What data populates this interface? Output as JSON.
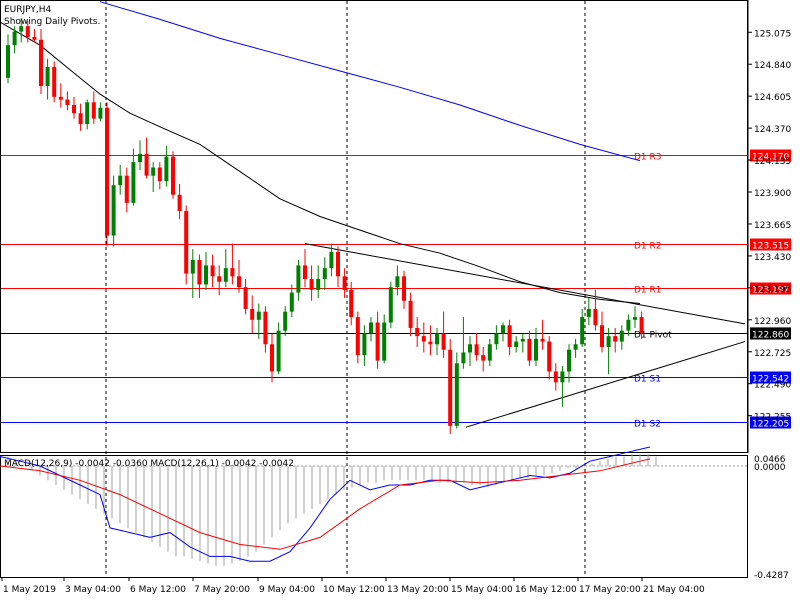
{
  "header": {
    "symbol_tf": "EURJPY,H4",
    "subtitle": "Showing Daily Pivots."
  },
  "price_axis": {
    "ticks": [
      "125.075",
      "124.840",
      "124.605",
      "124.370",
      "124.135",
      "123.900",
      "123.665",
      "123.430",
      "123.195",
      "122.960",
      "122.725",
      "122.490",
      "122.255"
    ],
    "current_price": "122.860"
  },
  "pivots": [
    {
      "label": "D1 R3",
      "price": "124.170",
      "color": "#ff0000"
    },
    {
      "label": "D1 R2",
      "price": "123.515",
      "color": "#ff0000"
    },
    {
      "label": "D1 R1",
      "price": "123.197",
      "color": "#ff0000"
    },
    {
      "label": "D1 Pivot",
      "price": "122.860",
      "color": "#000000"
    },
    {
      "label": "D1 S1",
      "price": "122.542",
      "color": "#0000ff"
    },
    {
      "label": "D1 S2",
      "price": "122.205",
      "color": "#0000ff"
    }
  ],
  "macd": {
    "caption": "MACD(12,26,9) -0.0042 -0.0360 MACD(12,26,1) -0.0042 -0.0042",
    "ticks": [
      "0.0466",
      "0.0000",
      "-0.4287"
    ]
  },
  "time_axis": [
    "1 May 2019",
    "3 May 04:00",
    "6 May 12:00",
    "7 May 20:00",
    "9 May 04:00",
    "10 May 12:00",
    "13 May 20:00",
    "15 May 04:00",
    "16 May 12:00",
    "17 May 20:00",
    "21 May 04:00"
  ],
  "colors": {
    "bull": "#008000",
    "bear": "#ff0000",
    "ma_fast": "#000000",
    "ma_slow": "#0000ff",
    "macd_line": "#0000ff",
    "signal_line": "#ff0000",
    "histogram": "#a0a0a0",
    "grid": "#000000"
  },
  "chart_data": {
    "type": "candlestick",
    "symbol": "EURJPY",
    "timeframe": "H4",
    "ylim": [
      122.12,
      125.18
    ],
    "candles": [
      {
        "o": 124.74,
        "h": 125.06,
        "l": 124.7,
        "c": 124.98
      },
      {
        "o": 124.98,
        "h": 125.12,
        "l": 124.92,
        "c": 125.08
      },
      {
        "o": 125.08,
        "h": 125.18,
        "l": 125.0,
        "c": 125.12
      },
      {
        "o": 125.12,
        "h": 125.16,
        "l": 125.0,
        "c": 125.04
      },
      {
        "o": 125.04,
        "h": 125.1,
        "l": 125.0,
        "c": 125.02
      },
      {
        "o": 125.02,
        "h": 125.1,
        "l": 124.62,
        "c": 124.68
      },
      {
        "o": 124.68,
        "h": 124.88,
        "l": 124.58,
        "c": 124.82
      },
      {
        "o": 124.82,
        "h": 124.86,
        "l": 124.56,
        "c": 124.6
      },
      {
        "o": 124.6,
        "h": 124.7,
        "l": 124.52,
        "c": 124.58
      },
      {
        "o": 124.58,
        "h": 124.64,
        "l": 124.5,
        "c": 124.54
      },
      {
        "o": 124.54,
        "h": 124.6,
        "l": 124.44,
        "c": 124.48
      },
      {
        "o": 124.48,
        "h": 124.55,
        "l": 124.35,
        "c": 124.4
      },
      {
        "o": 124.4,
        "h": 124.58,
        "l": 124.36,
        "c": 124.56
      },
      {
        "o": 124.56,
        "h": 124.64,
        "l": 124.4,
        "c": 124.44
      },
      {
        "o": 124.44,
        "h": 124.56,
        "l": 124.42,
        "c": 124.52
      },
      {
        "o": 124.52,
        "h": 124.56,
        "l": 123.5,
        "c": 123.58
      },
      {
        "o": 123.58,
        "h": 124.02,
        "l": 123.5,
        "c": 123.95
      },
      {
        "o": 123.95,
        "h": 124.1,
        "l": 123.88,
        "c": 124.02
      },
      {
        "o": 124.02,
        "h": 124.08,
        "l": 123.75,
        "c": 123.82
      },
      {
        "o": 123.82,
        "h": 124.22,
        "l": 123.8,
        "c": 124.12
      },
      {
        "o": 124.12,
        "h": 124.28,
        "l": 124.06,
        "c": 124.18
      },
      {
        "o": 124.18,
        "h": 124.3,
        "l": 124.0,
        "c": 124.02
      },
      {
        "o": 124.02,
        "h": 124.12,
        "l": 123.9,
        "c": 124.08
      },
      {
        "o": 124.08,
        "h": 124.12,
        "l": 123.92,
        "c": 123.98
      },
      {
        "o": 123.98,
        "h": 124.24,
        "l": 123.94,
        "c": 124.16
      },
      {
        "o": 124.16,
        "h": 124.2,
        "l": 123.85,
        "c": 123.88
      },
      {
        "o": 123.88,
        "h": 123.96,
        "l": 123.7,
        "c": 123.76
      },
      {
        "o": 123.76,
        "h": 123.8,
        "l": 123.22,
        "c": 123.3
      },
      {
        "o": 123.3,
        "h": 123.48,
        "l": 123.12,
        "c": 123.4
      },
      {
        "o": 123.4,
        "h": 123.44,
        "l": 123.12,
        "c": 123.22
      },
      {
        "o": 123.22,
        "h": 123.46,
        "l": 123.18,
        "c": 123.36
      },
      {
        "o": 123.36,
        "h": 123.44,
        "l": 123.2,
        "c": 123.28
      },
      {
        "o": 123.28,
        "h": 123.36,
        "l": 123.14,
        "c": 123.24
      },
      {
        "o": 123.24,
        "h": 123.48,
        "l": 123.2,
        "c": 123.34
      },
      {
        "o": 123.34,
        "h": 123.52,
        "l": 123.22,
        "c": 123.28
      },
      {
        "o": 123.28,
        "h": 123.4,
        "l": 123.16,
        "c": 123.2
      },
      {
        "o": 123.2,
        "h": 123.26,
        "l": 123.0,
        "c": 123.04
      },
      {
        "o": 123.04,
        "h": 123.14,
        "l": 122.86,
        "c": 122.96
      },
      {
        "o": 122.96,
        "h": 123.08,
        "l": 122.82,
        "c": 123.02
      },
      {
        "o": 123.02,
        "h": 123.06,
        "l": 122.72,
        "c": 122.78
      },
      {
        "o": 122.78,
        "h": 122.86,
        "l": 122.5,
        "c": 122.58
      },
      {
        "o": 122.58,
        "h": 122.94,
        "l": 122.56,
        "c": 122.88
      },
      {
        "o": 122.88,
        "h": 123.06,
        "l": 122.84,
        "c": 123.02
      },
      {
        "o": 123.02,
        "h": 123.22,
        "l": 122.98,
        "c": 123.16
      },
      {
        "o": 123.16,
        "h": 123.4,
        "l": 123.1,
        "c": 123.36
      },
      {
        "o": 123.36,
        "h": 123.48,
        "l": 123.2,
        "c": 123.26
      },
      {
        "o": 123.26,
        "h": 123.36,
        "l": 123.1,
        "c": 123.18
      },
      {
        "o": 123.18,
        "h": 123.36,
        "l": 123.12,
        "c": 123.26
      },
      {
        "o": 123.26,
        "h": 123.42,
        "l": 123.18,
        "c": 123.34
      },
      {
        "o": 123.34,
        "h": 123.52,
        "l": 123.28,
        "c": 123.46
      },
      {
        "o": 123.46,
        "h": 123.5,
        "l": 123.2,
        "c": 123.28
      },
      {
        "o": 123.28,
        "h": 123.34,
        "l": 123.12,
        "c": 123.18
      },
      {
        "o": 123.18,
        "h": 123.24,
        "l": 122.92,
        "c": 122.98
      },
      {
        "o": 122.98,
        "h": 123.02,
        "l": 122.64,
        "c": 122.7
      },
      {
        "o": 122.7,
        "h": 122.92,
        "l": 122.62,
        "c": 122.86
      },
      {
        "o": 122.86,
        "h": 122.98,
        "l": 122.8,
        "c": 122.94
      },
      {
        "o": 122.94,
        "h": 123.02,
        "l": 122.6,
        "c": 122.66
      },
      {
        "o": 122.66,
        "h": 123.0,
        "l": 122.64,
        "c": 122.94
      },
      {
        "o": 122.94,
        "h": 123.24,
        "l": 122.9,
        "c": 123.2
      },
      {
        "o": 123.2,
        "h": 123.36,
        "l": 123.14,
        "c": 123.28
      },
      {
        "o": 123.28,
        "h": 123.32,
        "l": 123.04,
        "c": 123.1
      },
      {
        "o": 123.1,
        "h": 123.16,
        "l": 122.84,
        "c": 122.9
      },
      {
        "o": 122.9,
        "h": 122.98,
        "l": 122.76,
        "c": 122.84
      },
      {
        "o": 122.84,
        "h": 122.94,
        "l": 122.72,
        "c": 122.8
      },
      {
        "o": 122.8,
        "h": 122.92,
        "l": 122.7,
        "c": 122.78
      },
      {
        "o": 122.78,
        "h": 122.9,
        "l": 122.7,
        "c": 122.86
      },
      {
        "o": 122.86,
        "h": 123.02,
        "l": 122.68,
        "c": 122.74
      },
      {
        "o": 122.74,
        "h": 122.82,
        "l": 122.12,
        "c": 122.18
      },
      {
        "o": 122.18,
        "h": 122.72,
        "l": 122.16,
        "c": 122.64
      },
      {
        "o": 122.64,
        "h": 122.98,
        "l": 122.6,
        "c": 122.72
      },
      {
        "o": 122.72,
        "h": 122.84,
        "l": 122.62,
        "c": 122.78
      },
      {
        "o": 122.78,
        "h": 122.86,
        "l": 122.66,
        "c": 122.7
      },
      {
        "o": 122.7,
        "h": 122.76,
        "l": 122.58,
        "c": 122.66
      },
      {
        "o": 122.66,
        "h": 122.82,
        "l": 122.62,
        "c": 122.78
      },
      {
        "o": 122.78,
        "h": 122.92,
        "l": 122.74,
        "c": 122.86
      },
      {
        "o": 122.86,
        "h": 122.94,
        "l": 122.8,
        "c": 122.92
      },
      {
        "o": 122.92,
        "h": 122.96,
        "l": 122.7,
        "c": 122.76
      },
      {
        "o": 122.76,
        "h": 122.84,
        "l": 122.72,
        "c": 122.8
      },
      {
        "o": 122.8,
        "h": 122.86,
        "l": 122.72,
        "c": 122.82
      },
      {
        "o": 122.82,
        "h": 122.88,
        "l": 122.62,
        "c": 122.66
      },
      {
        "o": 122.66,
        "h": 122.9,
        "l": 122.62,
        "c": 122.82
      },
      {
        "o": 122.82,
        "h": 122.96,
        "l": 122.74,
        "c": 122.8
      },
      {
        "o": 122.8,
        "h": 122.84,
        "l": 122.52,
        "c": 122.58
      },
      {
        "o": 122.58,
        "h": 122.64,
        "l": 122.44,
        "c": 122.5
      },
      {
        "o": 122.5,
        "h": 122.62,
        "l": 122.32,
        "c": 122.58
      },
      {
        "o": 122.58,
        "h": 122.78,
        "l": 122.5,
        "c": 122.74
      },
      {
        "o": 122.74,
        "h": 122.82,
        "l": 122.68,
        "c": 122.78
      },
      {
        "o": 122.78,
        "h": 123.04,
        "l": 122.76,
        "c": 122.98
      },
      {
        "o": 122.98,
        "h": 123.12,
        "l": 122.92,
        "c": 123.04
      },
      {
        "o": 123.04,
        "h": 123.18,
        "l": 122.88,
        "c": 122.92
      },
      {
        "o": 122.92,
        "h": 123.02,
        "l": 122.72,
        "c": 122.76
      },
      {
        "o": 122.76,
        "h": 122.9,
        "l": 122.56,
        "c": 122.84
      },
      {
        "o": 122.84,
        "h": 122.9,
        "l": 122.72,
        "c": 122.8
      },
      {
        "o": 122.8,
        "h": 122.92,
        "l": 122.74,
        "c": 122.88
      },
      {
        "o": 122.88,
        "h": 123.0,
        "l": 122.84,
        "c": 122.96
      },
      {
        "o": 122.96,
        "h": 123.06,
        "l": 122.9,
        "c": 122.98
      },
      {
        "o": 122.98,
        "h": 123.02,
        "l": 122.82,
        "c": 122.86
      }
    ],
    "ma_fast": [
      [
        0,
        125.15
      ],
      [
        40,
        124.98
      ],
      [
        70,
        124.8
      ],
      [
        100,
        124.62
      ],
      [
        130,
        124.48
      ],
      [
        160,
        124.38
      ],
      [
        200,
        124.25
      ],
      [
        240,
        124.05
      ],
      [
        280,
        123.85
      ],
      [
        320,
        123.72
      ],
      [
        360,
        123.62
      ],
      [
        400,
        123.52
      ],
      [
        440,
        123.45
      ],
      [
        480,
        123.35
      ],
      [
        520,
        123.24
      ],
      [
        560,
        123.16
      ],
      [
        600,
        123.11
      ],
      [
        640,
        123.08
      ]
    ],
    "ma_slow": [
      [
        100,
        125.3
      ],
      [
        160,
        125.17
      ],
      [
        220,
        125.03
      ],
      [
        280,
        124.91
      ],
      [
        340,
        124.79
      ],
      [
        400,
        124.67
      ],
      [
        460,
        124.54
      ],
      [
        520,
        124.39
      ],
      [
        580,
        124.25
      ],
      [
        640,
        124.13
      ]
    ],
    "trendlines": [
      {
        "from": [
          305,
          123.52
        ],
        "to": [
          745,
          122.93
        ]
      },
      {
        "from": [
          466,
          122.17
        ],
        "to": [
          745,
          122.8
        ]
      }
    ],
    "vertical_separators": [
      106,
      347,
      585
    ],
    "macd_histogram": [
      0.04,
      0.02,
      0.0,
      -0.02,
      -0.04,
      -0.06,
      -0.08,
      -0.1,
      -0.12,
      -0.14,
      -0.16,
      -0.18,
      -0.2,
      -0.22,
      -0.24,
      -0.26,
      -0.28,
      -0.3,
      -0.32,
      -0.34,
      -0.36,
      -0.38,
      -0.38,
      -0.39,
      -0.4,
      -0.41,
      -0.42,
      -0.42,
      -0.41,
      -0.4,
      -0.38,
      -0.36,
      -0.33,
      -0.3,
      -0.27,
      -0.24,
      -0.22,
      -0.2,
      -0.18,
      -0.16,
      -0.14,
      -0.12,
      -0.1,
      -0.09,
      -0.08,
      -0.07,
      -0.07,
      -0.06,
      -0.06,
      -0.06,
      -0.06,
      -0.06,
      -0.06,
      -0.06,
      -0.07,
      -0.07,
      -0.07,
      -0.07,
      -0.08,
      -0.08,
      -0.09,
      -0.08,
      -0.07,
      -0.06,
      -0.05,
      -0.05,
      -0.04,
      -0.04,
      -0.03,
      -0.02,
      -0.01,
      -0.01,
      0.0,
      0.01,
      0.02,
      0.03,
      0.04,
      0.04,
      0.05,
      0.05,
      0.05,
      0.04
    ],
    "macd_signal_x": [
      0,
      40,
      80,
      120,
      160,
      200,
      240,
      280,
      320,
      360,
      400,
      440,
      480,
      520,
      560,
      600,
      640,
      650
    ],
    "macd_signal_y": [
      0.0,
      -0.02,
      -0.06,
      -0.12,
      -0.2,
      -0.28,
      -0.33,
      -0.35,
      -0.3,
      -0.18,
      -0.08,
      -0.06,
      -0.07,
      -0.06,
      -0.04,
      -0.02,
      0.02,
      0.03
    ],
    "macd_main_x": [
      0,
      20,
      40,
      60,
      80,
      100,
      110,
      130,
      150,
      170,
      190,
      210,
      230,
      250,
      270,
      290,
      310,
      330,
      350,
      370,
      390,
      410,
      430,
      450,
      470,
      490,
      510,
      530,
      550,
      570,
      590,
      610,
      630,
      650
    ],
    "macd_main_y": [
      0.04,
      0.02,
      0.0,
      -0.04,
      -0.08,
      -0.12,
      -0.26,
      -0.28,
      -0.3,
      -0.28,
      -0.34,
      -0.38,
      -0.38,
      -0.4,
      -0.4,
      -0.36,
      -0.26,
      -0.14,
      -0.06,
      -0.1,
      -0.08,
      -0.08,
      -0.06,
      -0.06,
      -0.1,
      -0.08,
      -0.06,
      -0.04,
      -0.05,
      -0.03,
      0.02,
      0.04,
      0.06,
      0.08
    ]
  }
}
